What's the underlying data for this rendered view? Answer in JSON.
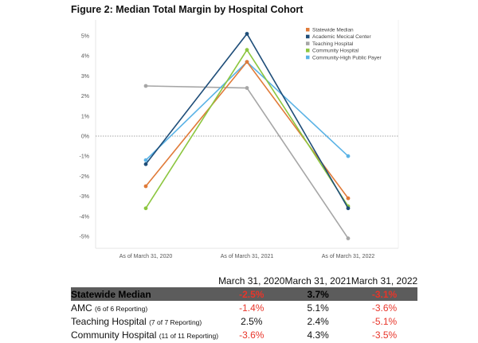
{
  "figure_title": "Figure 2: Median Total Margin by Hospital Cohort",
  "chart_data": {
    "type": "line",
    "title": "Figure 2: Median Total Margin by Hospital Cohort",
    "x": [
      "As of March 31, 2020",
      "As of March 31, 2021",
      "As of March 31, 2022"
    ],
    "ylim": [
      -5.5,
      5.5
    ],
    "yticks": [
      5,
      4,
      3,
      2,
      1,
      0,
      -1,
      -2,
      -3,
      -4,
      -5
    ],
    "ytick_labels": [
      "5%",
      "4%",
      "3%",
      "2%",
      "1%",
      "0%",
      "-1%",
      "-2%",
      "-3%",
      "-4%",
      "-5%"
    ],
    "zero_line": "dotted",
    "legend_position": "top-right",
    "series": [
      {
        "name": "Statewide Median",
        "color": "#e07b39",
        "values": [
          -2.5,
          3.7,
          -3.1
        ]
      },
      {
        "name": "Academic Mecical Center",
        "color": "#1f4e79",
        "values": [
          -1.4,
          5.1,
          -3.6
        ]
      },
      {
        "name": "Teaching Hospital",
        "color": "#a6a6a6",
        "values": [
          2.5,
          2.4,
          -5.1
        ]
      },
      {
        "name": "Community Hospital",
        "color": "#8cc63f",
        "values": [
          -3.6,
          4.3,
          -3.5
        ]
      },
      {
        "name": "Community-High Public Payer",
        "color": "#5bb3e6",
        "values": [
          -1.2,
          3.7,
          -1.0
        ]
      }
    ],
    "plot_order": [
      "Teaching Hospital",
      "Community-High Public Payer",
      "Statewide Median",
      "Community Hospital",
      "Academic Mecical Center"
    ]
  },
  "table": {
    "headers": [
      "March 31, 2020",
      "March 31, 2021",
      "March 31, 2022"
    ],
    "rows": [
      {
        "label": "Statewide Median",
        "note": "",
        "values": [
          "-2.5%",
          "3.7%",
          "-3.1%"
        ],
        "highlight": true
      },
      {
        "label": "AMC",
        "note": "(6 of 6 Reporting)",
        "values": [
          "-1.4%",
          "5.1%",
          "-3.6%"
        ],
        "highlight": false
      },
      {
        "label": "Teaching Hospital",
        "note": "(7 of 7 Reporting)",
        "values": [
          "2.5%",
          "2.4%",
          "-5.1%"
        ],
        "highlight": false
      },
      {
        "label": "Community Hospital",
        "note": "(11 of 11 Reporting)",
        "values": [
          "-3.6%",
          "4.3%",
          "-3.5%"
        ],
        "highlight": false
      }
    ]
  }
}
